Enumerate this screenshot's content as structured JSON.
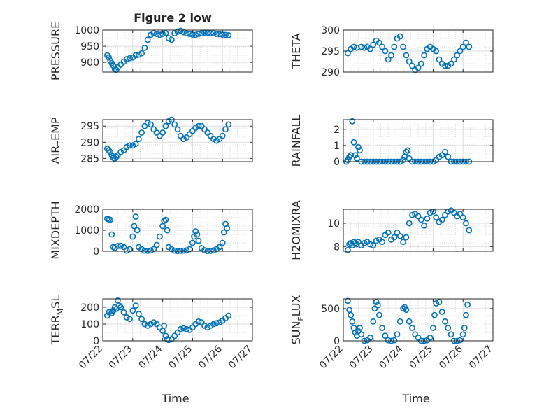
{
  "figure": {
    "title": "Figure 2 low",
    "xlabel": "Time"
  },
  "colors": {
    "marker": "#0072bd",
    "grid": "#dedede",
    "axes": "#262626"
  },
  "chart_data": [
    {
      "type": "scatter",
      "id": "pressure",
      "ylabel": {
        "main": "PRESSURE",
        "sub": ""
      },
      "ylim": [
        870,
        1000
      ],
      "yticks": [
        900,
        950,
        1000
      ],
      "xticks": [],
      "xlim": [
        0,
        5
      ],
      "x": [
        0.15,
        0.2,
        0.25,
        0.3,
        0.35,
        0.4,
        0.45,
        0.5,
        0.6,
        0.7,
        0.8,
        0.9,
        1.0,
        1.1,
        1.2,
        1.3,
        1.4,
        1.5,
        1.6,
        1.7,
        1.8,
        1.9,
        2.0,
        2.1,
        2.2,
        2.3,
        2.4,
        2.5,
        2.6,
        2.7,
        2.8,
        2.9,
        3.0,
        3.1,
        3.2,
        3.3,
        3.4,
        3.5,
        3.6,
        3.7,
        3.8,
        3.9,
        4.0,
        4.1,
        4.2
      ],
      "y": [
        922,
        915,
        905,
        898,
        890,
        880,
        877,
        885,
        893,
        902,
        910,
        913,
        915,
        922,
        924,
        928,
        945,
        970,
        985,
        990,
        988,
        985,
        988,
        990,
        975,
        970,
        990,
        995,
        998,
        993,
        990,
        988,
        986,
        985,
        988,
        990,
        992,
        992,
        990,
        990,
        988,
        987,
        986,
        985,
        984
      ]
    },
    {
      "type": "scatter",
      "id": "theta",
      "ylabel": {
        "main": "THETA",
        "sub": ""
      },
      "ylim": [
        290,
        300
      ],
      "yticks": [
        290,
        295,
        300
      ],
      "xticks": [],
      "xlim": [
        0,
        5
      ],
      "x": [
        0.15,
        0.25,
        0.35,
        0.45,
        0.6,
        0.7,
        0.8,
        0.9,
        1.0,
        1.1,
        1.2,
        1.3,
        1.4,
        1.5,
        1.6,
        1.7,
        1.8,
        1.9,
        2.0,
        2.1,
        2.2,
        2.3,
        2.4,
        2.5,
        2.6,
        2.7,
        2.8,
        2.9,
        3.0,
        3.1,
        3.2,
        3.3,
        3.4,
        3.5,
        3.6,
        3.7,
        3.8,
        3.9,
        4.0,
        4.1,
        4.2
      ],
      "y": [
        294.5,
        295.5,
        296,
        295.8,
        296,
        295.8,
        296,
        295.5,
        296.5,
        297.5,
        297,
        296,
        295,
        293,
        294,
        296,
        298,
        298.5,
        296,
        294,
        292.5,
        291.5,
        290.5,
        291,
        292,
        294,
        295.5,
        296,
        295.5,
        295,
        293,
        292,
        291.5,
        291.5,
        292,
        293,
        294,
        295,
        296,
        297,
        296
      ]
    },
    {
      "type": "scatter",
      "id": "air-temp",
      "ylabel": {
        "main": "AIR",
        "sub": "T",
        "rest": "EMP"
      },
      "ylim": [
        284,
        297
      ],
      "yticks": [
        285,
        290,
        295
      ],
      "xticks": [],
      "xlim": [
        0,
        5
      ],
      "x": [
        0.15,
        0.2,
        0.25,
        0.3,
        0.35,
        0.4,
        0.45,
        0.5,
        0.6,
        0.7,
        0.8,
        0.9,
        1.0,
        1.1,
        1.2,
        1.3,
        1.4,
        1.5,
        1.6,
        1.7,
        1.8,
        1.9,
        2.0,
        2.1,
        2.2,
        2.3,
        2.4,
        2.5,
        2.6,
        2.7,
        2.8,
        2.9,
        3.0,
        3.1,
        3.2,
        3.3,
        3.4,
        3.5,
        3.6,
        3.7,
        3.8,
        3.9,
        4.0,
        4.1,
        4.2
      ],
      "y": [
        288,
        287.5,
        287,
        286,
        285.2,
        285,
        285.5,
        286,
        287,
        287.5,
        288.5,
        289,
        289,
        289.5,
        291,
        293,
        295,
        296,
        295.5,
        294,
        293,
        292,
        293,
        295,
        296.5,
        297,
        295.5,
        294,
        292,
        291,
        291.5,
        292.5,
        293.5,
        294.5,
        295,
        295,
        294,
        293,
        292,
        291,
        290.5,
        291,
        292,
        294,
        295.5
      ]
    },
    {
      "type": "scatter",
      "id": "rainfall",
      "ylabel": {
        "main": "RAINFALL",
        "sub": ""
      },
      "ylim": [
        0,
        2.6
      ],
      "yticks": [
        0,
        1,
        2
      ],
      "xticks": [],
      "xlim": [
        0,
        5
      ],
      "x": [
        0.1,
        0.15,
        0.2,
        0.25,
        0.3,
        0.35,
        0.4,
        0.45,
        0.5,
        0.55,
        0.6,
        0.7,
        0.8,
        0.9,
        1.0,
        1.1,
        1.2,
        1.3,
        1.4,
        1.5,
        1.6,
        1.7,
        1.8,
        1.9,
        2.0,
        2.05,
        2.1,
        2.15,
        2.2,
        2.3,
        2.4,
        2.5,
        2.6,
        2.7,
        2.8,
        2.9,
        3.0,
        3.1,
        3.2,
        3.3,
        3.4,
        3.5,
        3.6,
        3.7,
        3.8,
        3.9,
        4.0,
        4.1,
        4.2
      ],
      "y": [
        0,
        0.1,
        0.3,
        0.4,
        2.5,
        1.2,
        0.4,
        0.2,
        0.9,
        0.7,
        0,
        0,
        0,
        0,
        0,
        0,
        0,
        0,
        0,
        0,
        0,
        0,
        0,
        0,
        0.1,
        0.3,
        0.6,
        0.7,
        0.2,
        0,
        0,
        0,
        0,
        0,
        0,
        0,
        0,
        0.1,
        0.3,
        0.4,
        0.6,
        0.3,
        0,
        0,
        0,
        0,
        0,
        0,
        0
      ]
    },
    {
      "type": "scatter",
      "id": "mixdepth",
      "ylabel": {
        "main": "MIXDEPTH",
        "sub": ""
      },
      "ylim": [
        0,
        2000
      ],
      "yticks": [
        0,
        1000,
        2000
      ],
      "xticks": [],
      "xlim": [
        0,
        5
      ],
      "x": [
        0.15,
        0.2,
        0.25,
        0.3,
        0.35,
        0.4,
        0.5,
        0.6,
        0.7,
        0.8,
        0.9,
        1.0,
        1.05,
        1.1,
        1.15,
        1.2,
        1.3,
        1.4,
        1.5,
        1.6,
        1.7,
        1.8,
        1.9,
        2.0,
        2.05,
        2.1,
        2.15,
        2.2,
        2.3,
        2.4,
        2.5,
        2.6,
        2.7,
        2.8,
        2.9,
        3.0,
        3.05,
        3.1,
        3.15,
        3.2,
        3.3,
        3.4,
        3.5,
        3.6,
        3.7,
        3.8,
        3.9,
        4.0,
        4.05,
        4.1,
        4.15
      ],
      "y": [
        1550,
        1520,
        1500,
        800,
        200,
        150,
        250,
        260,
        200,
        30,
        100,
        700,
        1200,
        1650,
        1000,
        200,
        100,
        30,
        20,
        40,
        100,
        300,
        700,
        1200,
        1450,
        1500,
        1000,
        200,
        100,
        30,
        10,
        20,
        30,
        40,
        100,
        400,
        700,
        950,
        800,
        500,
        150,
        50,
        10,
        20,
        40,
        100,
        200,
        400,
        900,
        1300,
        1100
      ]
    },
    {
      "type": "scatter",
      "id": "h2omixra",
      "ylabel": {
        "main": "H2OMIXRA",
        "sub": ""
      },
      "ylim": [
        7.6,
        11.2
      ],
      "yticks": [
        8,
        10
      ],
      "xticks": [],
      "xlim": [
        0,
        5
      ],
      "x": [
        0.15,
        0.2,
        0.25,
        0.3,
        0.35,
        0.4,
        0.45,
        0.5,
        0.6,
        0.7,
        0.8,
        0.9,
        1.0,
        1.1,
        1.2,
        1.3,
        1.4,
        1.5,
        1.6,
        1.7,
        1.8,
        1.9,
        2.0,
        2.1,
        2.2,
        2.3,
        2.4,
        2.5,
        2.6,
        2.7,
        2.8,
        2.9,
        3.0,
        3.1,
        3.2,
        3.3,
        3.4,
        3.5,
        3.6,
        3.7,
        3.8,
        3.9,
        4.0,
        4.1,
        4.2
      ],
      "y": [
        7.7,
        8.2,
        8.3,
        8.1,
        8.4,
        8.3,
        8.2,
        8.4,
        8.1,
        8.3,
        8.4,
        8.2,
        8.1,
        8.5,
        8.6,
        8.4,
        9.0,
        9.2,
        8.6,
        8.8,
        9.2,
        8.9,
        8.4,
        8.8,
        10.0,
        10.7,
        10.8,
        10.6,
        10.3,
        9.8,
        10.4,
        10.9,
        11.0,
        10.5,
        10.1,
        10.3,
        10.7,
        11.0,
        11.1,
        10.9,
        10.6,
        10.8,
        10.5,
        10.0,
        9.4
      ]
    },
    {
      "type": "scatter",
      "id": "terr-msl",
      "ylabel": {
        "main": "TERR",
        "sub": "M",
        "rest": "SL"
      },
      "ylim": [
        0,
        250
      ],
      "yticks": [
        0,
        100,
        200
      ],
      "xticks": [
        "07/22",
        "07/23",
        "07/24",
        "07/25",
        "07/26",
        "07/27"
      ],
      "xlim": [
        0,
        5
      ],
      "x": [
        0.15,
        0.2,
        0.25,
        0.3,
        0.35,
        0.4,
        0.45,
        0.5,
        0.55,
        0.6,
        0.7,
        0.8,
        0.9,
        1.0,
        1.1,
        1.2,
        1.3,
        1.4,
        1.5,
        1.6,
        1.7,
        1.8,
        1.9,
        2.0,
        2.05,
        2.1,
        2.15,
        2.2,
        2.3,
        2.4,
        2.5,
        2.6,
        2.7,
        2.8,
        2.9,
        3.0,
        3.1,
        3.2,
        3.3,
        3.4,
        3.5,
        3.6,
        3.7,
        3.8,
        3.9,
        4.0,
        4.1,
        4.2
      ],
      "y": [
        150,
        170,
        175,
        165,
        180,
        200,
        190,
        240,
        210,
        200,
        170,
        140,
        130,
        180,
        210,
        160,
        130,
        100,
        90,
        100,
        110,
        100,
        80,
        60,
        90,
        30,
        10,
        5,
        10,
        30,
        50,
        70,
        75,
        70,
        65,
        80,
        100,
        115,
        110,
        90,
        80,
        90,
        100,
        105,
        110,
        120,
        135,
        150
      ]
    },
    {
      "type": "scatter",
      "id": "sun-flux",
      "ylabel": {
        "main": "SUN",
        "sub": "F",
        "rest": "LUX"
      },
      "ylim": [
        0,
        650
      ],
      "yticks": [
        0,
        500
      ],
      "xticks": [
        "07/22",
        "07/23",
        "07/24",
        "07/25",
        "07/26",
        "07/27"
      ],
      "xlim": [
        0,
        5
      ],
      "x": [
        0.15,
        0.2,
        0.25,
        0.3,
        0.35,
        0.4,
        0.45,
        0.5,
        0.55,
        0.6,
        0.7,
        0.8,
        0.9,
        1.0,
        1.05,
        1.1,
        1.15,
        1.2,
        1.3,
        1.4,
        1.5,
        1.6,
        1.7,
        1.8,
        1.9,
        2.0,
        2.05,
        2.1,
        2.2,
        2.3,
        2.4,
        2.5,
        2.6,
        2.7,
        2.8,
        2.9,
        3.0,
        3.05,
        3.1,
        3.2,
        3.3,
        3.4,
        3.5,
        3.6,
        3.7,
        3.8,
        3.9,
        4.0,
        4.05,
        4.1,
        4.15
      ],
      "y": [
        620,
        480,
        400,
        300,
        200,
        130,
        80,
        150,
        200,
        100,
        0,
        10,
        50,
        300,
        500,
        600,
        550,
        400,
        200,
        80,
        10,
        0,
        10,
        100,
        300,
        500,
        520,
        480,
        300,
        200,
        100,
        50,
        0,
        0,
        10,
        50,
        200,
        400,
        580,
        600,
        450,
        300,
        200,
        100,
        0,
        0,
        10,
        100,
        200,
        400,
        560
      ]
    }
  ]
}
